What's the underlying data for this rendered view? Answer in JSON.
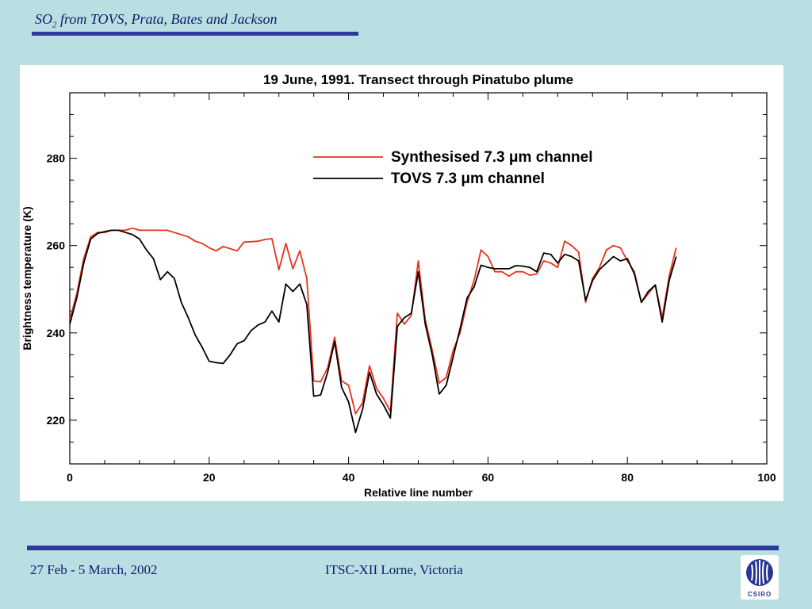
{
  "slide": {
    "title_prefix": "SO",
    "title_subscript": "2",
    "title_suffix": " from TOVS, Prata, Bates and Jackson",
    "footer_date": "27 Feb - 5 March, 2002",
    "footer_event": "ITSC-XII Lorne, Victoria",
    "logo_text": "CSIRO",
    "colors": {
      "background": "#b9dfe3",
      "accent": "#2d3a9c",
      "text": "#101a6b"
    }
  },
  "chart_data": {
    "type": "line",
    "title": "19 June, 1991.  Transect through Pinatubo plume",
    "xlabel": "Relative line number",
    "ylabel": "Brightness temperature (K)",
    "xlim": [
      0,
      100
    ],
    "ylim": [
      210,
      295
    ],
    "xticks": [
      0,
      20,
      40,
      60,
      80,
      100
    ],
    "yticks": [
      220,
      240,
      260,
      280
    ],
    "grid": false,
    "legend_position": "top-right",
    "series": [
      {
        "name": "Synthesised 7.3 μm channel",
        "color": "#e8321e",
        "x": [
          0,
          1,
          2,
          3,
          4,
          5,
          6,
          7,
          8,
          9,
          10,
          11,
          12,
          13,
          14,
          15,
          16,
          17,
          18,
          19,
          20,
          21,
          22,
          23,
          24,
          25,
          26,
          27,
          28,
          29,
          30,
          31,
          32,
          33,
          34,
          35,
          36,
          37,
          38,
          39,
          40,
          41,
          42,
          43,
          44,
          45,
          46,
          47,
          48,
          49,
          50,
          51,
          52,
          53,
          54,
          55,
          56,
          57,
          58,
          59,
          60,
          61,
          62,
          63,
          64,
          65,
          66,
          67,
          68,
          69,
          70,
          71,
          72,
          73,
          74,
          75,
          76,
          77,
          78,
          79,
          80,
          81,
          82,
          83,
          84,
          85,
          86,
          87
        ],
        "y": [
          243,
          249,
          257,
          262,
          263,
          263,
          263.5,
          263.5,
          263.5,
          264,
          263.5,
          263.5,
          263.5,
          263.5,
          263.5,
          263,
          262.5,
          262,
          261,
          260.5,
          259.5,
          258.8,
          259.8,
          259.3,
          258.8,
          260.8,
          260.9,
          261,
          261.4,
          261.6,
          254.5,
          260.5,
          254.7,
          258.8,
          252.5,
          229,
          228.8,
          232,
          239,
          229,
          228,
          221.5,
          224,
          232.5,
          227.3,
          225,
          222,
          244.5,
          242,
          244,
          256.5,
          243,
          236,
          228.5,
          229.8,
          236,
          240,
          247,
          252,
          259,
          257.5,
          254,
          254,
          253,
          254,
          254,
          253.2,
          253.5,
          256.5,
          256,
          255,
          261,
          260,
          258.5,
          247,
          252.5,
          255,
          259,
          260,
          259.5,
          256.5,
          254,
          247,
          249,
          251,
          243.5,
          253,
          259.5
        ]
      },
      {
        "name": "TOVS 7.3 μm channel",
        "color": "#000000",
        "x": [
          0,
          1,
          2,
          3,
          4,
          5,
          6,
          7,
          8,
          9,
          10,
          11,
          12,
          13,
          14,
          15,
          16,
          17,
          18,
          19,
          20,
          21,
          22,
          23,
          24,
          25,
          26,
          27,
          28,
          29,
          30,
          31,
          32,
          33,
          34,
          35,
          36,
          37,
          38,
          39,
          40,
          41,
          42,
          43,
          44,
          45,
          46,
          47,
          48,
          49,
          50,
          51,
          52,
          53,
          54,
          55,
          56,
          57,
          58,
          59,
          60,
          61,
          62,
          63,
          64,
          65,
          66,
          67,
          68,
          69,
          70,
          71,
          72,
          73,
          74,
          75,
          76,
          77,
          78,
          79,
          80,
          81,
          82,
          83,
          84,
          85,
          86,
          87
        ],
        "y": [
          242,
          248,
          256,
          261.5,
          262.8,
          263.2,
          263.5,
          263.5,
          263,
          262.5,
          261.5,
          259,
          257,
          252.2,
          254,
          252.5,
          247,
          243.5,
          239.5,
          236.7,
          233.5,
          233.2,
          233,
          235,
          237.5,
          238.2,
          240.5,
          241.8,
          242.5,
          245,
          242.5,
          251.2,
          249.5,
          251.2,
          246.5,
          225.5,
          225.8,
          231,
          238,
          227.5,
          224.2,
          217.2,
          222.5,
          231,
          226,
          223.5,
          220.5,
          241.5,
          243.5,
          244.5,
          254,
          242,
          235,
          226,
          228,
          234.5,
          241,
          248,
          250.5,
          255.5,
          255,
          254.7,
          254.7,
          254.7,
          255.4,
          255.3,
          255,
          254,
          258.3,
          258,
          256,
          258,
          257.5,
          256.5,
          247.5,
          252,
          254.5,
          256,
          257.5,
          256.5,
          257,
          253.5,
          247,
          249.5,
          251,
          242.5,
          252,
          257.5
        ]
      }
    ]
  }
}
